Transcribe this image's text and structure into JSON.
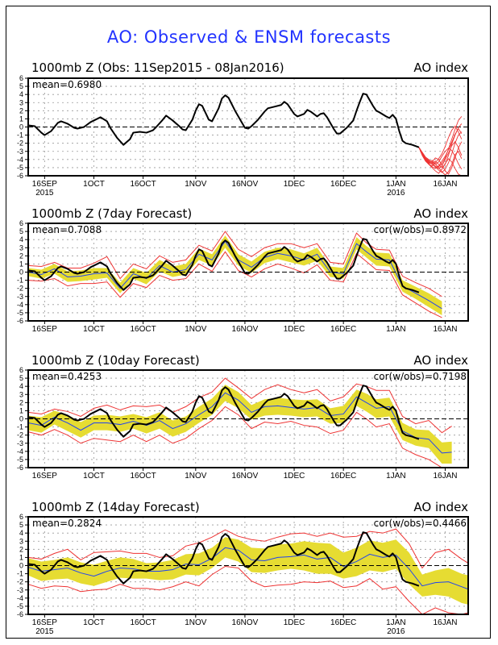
{
  "title": "AO: Observed & ENSM forecasts",
  "colors": {
    "title": "#2233ff",
    "observed": "#000000",
    "ensemble_mean": "#2244ee",
    "spread_band": "#e6dc32",
    "envelope": "#ee3333",
    "grid": "#999999"
  },
  "chart_data": [
    {
      "type": "line",
      "panel": "observed",
      "title": "1000mb Z (Obs: 11Sep2015 - 08Jan2016)",
      "right_label": "AO index",
      "stat_label": "mean=0.6980",
      "corr_label": "",
      "x_start": "2015-09-11",
      "xlim_days": [
        0,
        134
      ],
      "ylim": [
        -6,
        6
      ],
      "yticks": [
        6,
        5,
        4,
        3,
        2,
        1,
        0,
        -1,
        -2,
        -3,
        -4,
        -5,
        -6
      ],
      "xticks": [
        {
          "day": 5,
          "label": "16SEP",
          "sub": "2015"
        },
        {
          "day": 20,
          "label": "1OCT",
          "sub": ""
        },
        {
          "day": 35,
          "label": "16OCT",
          "sub": ""
        },
        {
          "day": 51,
          "label": "1NOV",
          "sub": ""
        },
        {
          "day": 66,
          "label": "16NOV",
          "sub": ""
        },
        {
          "day": 81,
          "label": "1DEC",
          "sub": ""
        },
        {
          "day": 96,
          "label": "16DEC",
          "sub": ""
        },
        {
          "day": 112,
          "label": "1JAN",
          "sub": "2016"
        },
        {
          "day": 127,
          "label": "16JAN",
          "sub": ""
        }
      ],
      "grid": true,
      "show_year_labels": true,
      "series": [
        {
          "name": "observed",
          "kind": "observed"
        },
        {
          "name": "ensemble members",
          "kind": "members",
          "start_day": 119,
          "members": [
            [
              -2.5,
              -3.3,
              -3.9,
              -4.3,
              -4.6,
              -4.8,
              -4.9,
              -4.5,
              -3.8,
              -2.7,
              -1.5,
              -0.3,
              0.8,
              1.3
            ],
            [
              -2.5,
              -3.4,
              -4.0,
              -4.4,
              -4.5,
              -4.2,
              -4.6,
              -5.0,
              -4.6,
              -3.5,
              -2.1,
              -1.0,
              -0.1,
              0.4
            ],
            [
              -2.5,
              -3.2,
              -3.8,
              -4.2,
              -4.6,
              -4.9,
              -5.3,
              -5.6,
              -5.2,
              -4.4,
              -3.3,
              -2.0,
              -1.0,
              -0.6
            ],
            [
              -2.5,
              -3.3,
              -4.1,
              -4.5,
              -4.3,
              -3.8,
              -4.0,
              -4.7,
              -5.4,
              -5.8,
              -5.0,
              -3.8,
              -2.6,
              -1.8
            ],
            [
              -2.5,
              -3.5,
              -4.2,
              -4.6,
              -4.8,
              -4.4,
              -3.9,
              -3.3,
              -2.4,
              -1.3,
              -0.4,
              0.1,
              -0.6,
              -1.5
            ],
            [
              -2.5,
              -3.1,
              -3.7,
              -4.0,
              -4.4,
              -4.9,
              -5.1,
              -4.8,
              -4.0,
              -3.2,
              -2.3,
              -1.8,
              -2.5,
              -3.5
            ],
            [
              -2.5,
              -3.4,
              -4.0,
              -4.3,
              -4.1,
              -4.5,
              -5.0,
              -5.5,
              -5.9,
              -5.5,
              -4.6,
              -3.4,
              -3.0,
              -3.9
            ],
            [
              -2.5,
              -3.2,
              -3.9,
              -4.5,
              -4.9,
              -5.1,
              -4.8,
              -4.2,
              -3.6,
              -2.8,
              -1.9,
              -0.9,
              -0.2,
              -0.8
            ],
            [
              -2.5,
              -3.3,
              -3.8,
              -4.1,
              -4.3,
              -4.6,
              -4.3,
              -3.6,
              -3.0,
              -2.6,
              -2.9,
              -3.6,
              -4.5,
              -5.2
            ],
            [
              -2.5,
              -3.4,
              -4.1,
              -4.6,
              -5.0,
              -5.4,
              -5.7,
              -5.2,
              -4.5,
              -3.9,
              -4.3,
              -5.1,
              -5.8,
              -6.0
            ]
          ]
        }
      ],
      "observed": {
        "days": [
          0,
          2,
          4,
          5,
          7,
          9,
          10,
          12,
          14,
          15,
          17,
          19,
          21,
          22,
          24,
          25,
          27,
          29,
          31,
          32,
          34,
          36,
          38,
          39,
          41,
          42,
          44,
          46,
          47,
          48,
          50,
          51,
          52,
          53,
          55,
          56,
          58,
          59,
          60,
          61,
          63,
          65,
          66,
          67,
          68,
          70,
          72,
          73,
          75,
          77,
          78,
          79,
          81,
          82,
          84,
          85,
          86,
          88,
          89,
          90,
          91,
          93,
          94,
          95,
          97,
          99,
          100,
          101,
          102,
          103,
          105,
          106,
          107,
          109,
          110,
          111,
          112,
          113,
          114,
          115,
          117,
          119
        ],
        "values": [
          0.2,
          0.1,
          -0.7,
          -1.0,
          -0.5,
          0.5,
          0.7,
          0.4,
          -0.1,
          -0.2,
          0.0,
          0.6,
          1.0,
          1.2,
          0.7,
          -0.1,
          -1.3,
          -2.2,
          -1.5,
          -0.7,
          -0.6,
          -0.7,
          -0.4,
          0.0,
          0.9,
          1.4,
          0.8,
          0.1,
          -0.3,
          -0.4,
          0.9,
          2.0,
          2.8,
          2.6,
          0.9,
          0.7,
          2.3,
          3.5,
          3.9,
          3.6,
          2.0,
          0.6,
          -0.1,
          -0.2,
          0.1,
          0.9,
          1.9,
          2.3,
          2.5,
          2.7,
          3.1,
          2.8,
          1.6,
          1.3,
          1.6,
          2.1,
          1.9,
          1.3,
          1.6,
          1.7,
          1.2,
          -0.2,
          -0.8,
          -0.8,
          -0.1,
          0.8,
          2.0,
          3.1,
          4.1,
          4.0,
          2.6,
          2.0,
          1.8,
          1.3,
          1.1,
          1.5,
          1.0,
          -0.5,
          -1.7,
          -2.0,
          -2.2,
          -2.5
        ]
      }
    },
    {
      "type": "area",
      "panel": "7day",
      "title": "1000mb Z (7day Forecast)",
      "right_label": "AO index",
      "stat_label": "mean=0.7088",
      "corr_label": "cor(w/obs)=0.8972",
      "xlim_days": [
        0,
        134
      ],
      "ylim": [
        -6,
        6
      ],
      "show_year_labels": false,
      "forecast": {
        "days": [
          0,
          4,
          8,
          12,
          16,
          20,
          24,
          28,
          32,
          36,
          40,
          44,
          48,
          52,
          56,
          60,
          64,
          68,
          72,
          76,
          80,
          84,
          88,
          92,
          96,
          100,
          103,
          106,
          110,
          114,
          118,
          122,
          126
        ],
        "mean": [
          0.0,
          -0.3,
          0.4,
          -0.6,
          -0.5,
          -0.2,
          -0.1,
          -2.0,
          -0.2,
          -0.8,
          0.8,
          0.0,
          0.3,
          2.2,
          1.5,
          3.8,
          1.5,
          0.6,
          1.8,
          2.3,
          2.0,
          1.5,
          2.2,
          0.0,
          -0.2,
          3.5,
          2.5,
          1.6,
          1.5,
          -1.7,
          -2.6,
          -3.5,
          -4.5
        ],
        "band_lo": [
          -0.5,
          -0.8,
          -0.2,
          -1.2,
          -1.1,
          -0.9,
          -0.7,
          -2.6,
          -0.8,
          -1.5,
          0.1,
          -0.6,
          -0.3,
          1.5,
          0.8,
          3.0,
          0.8,
          -0.1,
          1.1,
          1.6,
          1.2,
          0.8,
          1.4,
          -0.6,
          -0.8,
          2.8,
          1.8,
          0.8,
          0.7,
          -2.4,
          -3.3,
          -4.3,
          -5.3
        ],
        "band_hi": [
          0.5,
          0.3,
          1.0,
          0.1,
          0.2,
          0.5,
          0.5,
          -1.3,
          0.5,
          -0.1,
          1.5,
          0.7,
          1.0,
          2.9,
          2.2,
          4.5,
          2.2,
          1.3,
          2.5,
          3.0,
          2.8,
          2.3,
          3.0,
          0.7,
          0.5,
          4.3,
          3.2,
          2.4,
          2.3,
          -1.0,
          -1.8,
          -2.6,
          -3.6
        ],
        "env_lo": [
          -1.0,
          -1.1,
          -0.8,
          -1.7,
          -1.4,
          -1.4,
          -1.2,
          -3.1,
          -1.4,
          -1.9,
          -0.4,
          -1.0,
          -0.8,
          1.0,
          0.1,
          2.5,
          0.2,
          -0.6,
          0.4,
          1.0,
          0.5,
          -0.1,
          0.9,
          -1.0,
          -1.2,
          2.3,
          1.3,
          0.3,
          0.2,
          -2.8,
          -3.8,
          -4.8,
          -5.6
        ],
        "env_hi": [
          0.8,
          0.7,
          1.2,
          0.5,
          0.5,
          1.1,
          1.9,
          -0.8,
          1.0,
          0.4,
          2.0,
          1.2,
          1.5,
          3.3,
          2.6,
          5.0,
          2.8,
          1.9,
          3.0,
          3.5,
          3.5,
          3.0,
          3.5,
          1.2,
          1.0,
          4.8,
          3.6,
          2.8,
          2.7,
          -0.5,
          -1.3,
          -2.0,
          -3.0
        ]
      }
    },
    {
      "type": "area",
      "panel": "10day",
      "title": "1000mb Z (10day Forecast)",
      "right_label": "AO index",
      "stat_label": "mean=0.4253",
      "corr_label": "cor(w/obs)=0.7198",
      "xlim_days": [
        0,
        134
      ],
      "ylim": [
        -6,
        6
      ],
      "show_year_labels": false,
      "forecast": {
        "days": [
          0,
          4,
          8,
          12,
          16,
          20,
          24,
          28,
          32,
          36,
          40,
          44,
          48,
          52,
          56,
          60,
          64,
          68,
          72,
          76,
          80,
          84,
          88,
          92,
          96,
          100,
          103,
          106,
          110,
          114,
          118,
          122,
          126,
          129
        ],
        "mean": [
          -0.5,
          -0.8,
          0.2,
          -0.5,
          -1.4,
          -0.5,
          -0.5,
          -0.7,
          -0.3,
          -0.8,
          -0.2,
          -1.2,
          -0.6,
          0.5,
          1.5,
          3.2,
          2.3,
          0.8,
          1.5,
          1.6,
          1.4,
          1.2,
          1.4,
          0.4,
          0.6,
          2.7,
          2.0,
          1.3,
          1.5,
          -1.5,
          -2.3,
          -2.5,
          -4.2,
          -4.1
        ],
        "band_lo": [
          -1.4,
          -1.7,
          -0.7,
          -1.5,
          -2.3,
          -1.4,
          -1.4,
          -1.6,
          -1.2,
          -1.8,
          -1.2,
          -2.2,
          -1.6,
          -0.5,
          0.5,
          2.2,
          1.3,
          -0.1,
          0.4,
          0.5,
          0.4,
          0.2,
          0.3,
          -0.6,
          -0.5,
          1.6,
          0.9,
          0.1,
          0.3,
          -2.6,
          -3.3,
          -3.6,
          -5.5,
          -5.5
        ],
        "band_hi": [
          0.4,
          0.2,
          1.0,
          0.5,
          -0.4,
          0.4,
          0.5,
          0.3,
          0.6,
          0.2,
          0.8,
          -0.2,
          0.3,
          1.5,
          2.5,
          4.2,
          3.3,
          1.7,
          2.4,
          2.6,
          2.4,
          2.3,
          2.4,
          1.3,
          1.6,
          3.6,
          3.1,
          2.4,
          2.6,
          -0.5,
          -1.3,
          -1.4,
          -2.9,
          -2.8
        ],
        "env_lo": [
          -1.6,
          -2.0,
          -1.3,
          -2.0,
          -3.0,
          -2.4,
          -2.6,
          -2.8,
          -2.0,
          -2.8,
          -2.0,
          -3.0,
          -2.4,
          -1.2,
          -0.2,
          1.5,
          0.5,
          -1.2,
          -0.4,
          -0.6,
          -0.3,
          -0.8,
          -1.0,
          -1.8,
          -1.4,
          0.8,
          0.0,
          -1.0,
          -0.6,
          -3.6,
          -4.4,
          -5.0,
          -6.0,
          -6.0
        ],
        "env_hi": [
          0.8,
          0.6,
          1.2,
          0.9,
          0.3,
          1.3,
          1.7,
          1.1,
          1.6,
          1.5,
          1.7,
          0.8,
          1.5,
          2.6,
          3.3,
          5.0,
          3.8,
          2.5,
          3.6,
          4.2,
          3.6,
          3.2,
          3.6,
          2.2,
          2.7,
          4.3,
          4.0,
          3.5,
          3.5,
          0.3,
          -0.6,
          -0.2,
          -1.7,
          -0.9
        ]
      }
    },
    {
      "type": "area",
      "panel": "14day",
      "title": "1000mb Z (14day Forecast)",
      "right_label": "AO index",
      "stat_label": "mean=0.2824",
      "corr_label": "cor(w/obs)=0.4466",
      "xlim_days": [
        0,
        134
      ],
      "ylim": [
        -6,
        6
      ],
      "show_year_labels": true,
      "forecast": {
        "days": [
          0,
          4,
          8,
          12,
          16,
          20,
          24,
          28,
          32,
          36,
          40,
          44,
          48,
          52,
          56,
          60,
          64,
          68,
          72,
          76,
          80,
          84,
          88,
          92,
          96,
          100,
          104,
          108,
          112,
          116,
          120,
          124,
          128,
          132,
          134
        ],
        "mean": [
          -0.2,
          -0.7,
          -0.5,
          -0.3,
          -0.9,
          -1.3,
          -0.7,
          -0.3,
          -0.4,
          -0.7,
          -0.7,
          -0.5,
          0.2,
          0.1,
          0.9,
          2.2,
          1.9,
          0.7,
          0.6,
          1.0,
          1.1,
          1.3,
          0.8,
          1.0,
          -0.1,
          0.5,
          1.4,
          1.0,
          1.3,
          -0.4,
          -2.5,
          -2.1,
          -2.0,
          -2.6,
          -2.9
        ],
        "band_lo": [
          -1.2,
          -1.9,
          -1.7,
          -1.6,
          -2.2,
          -2.5,
          -2.0,
          -1.5,
          -1.6,
          -1.6,
          -1.8,
          -1.7,
          -1.1,
          -1.2,
          -0.3,
          1.0,
          0.5,
          -0.8,
          -0.9,
          -0.6,
          -0.4,
          -0.6,
          -1.0,
          -1.0,
          -1.6,
          -1.3,
          -0.6,
          -0.8,
          -0.4,
          -2.3,
          -3.8,
          -3.6,
          -3.8,
          -4.6,
          -4.8
        ],
        "band_hi": [
          0.9,
          0.5,
          0.7,
          1.0,
          0.4,
          0.1,
          0.6,
          1.0,
          0.8,
          0.3,
          0.4,
          0.7,
          1.4,
          1.5,
          2.2,
          3.5,
          3.2,
          2.2,
          2.1,
          2.6,
          2.7,
          3.0,
          2.8,
          2.7,
          1.6,
          2.2,
          3.1,
          2.8,
          3.2,
          1.6,
          -1.1,
          -0.6,
          -0.3,
          -1.0,
          -1.2
        ],
        "env_lo": [
          -2.3,
          -2.8,
          -2.5,
          -2.6,
          -3.2,
          -3.0,
          -2.9,
          -2.3,
          -2.8,
          -2.8,
          -3.0,
          -2.6,
          -2.0,
          -2.5,
          -1.1,
          -0.1,
          -0.3,
          -1.9,
          -2.6,
          -2.4,
          -2.3,
          -2.0,
          -2.1,
          -1.9,
          -2.7,
          -2.5,
          -1.6,
          -2.9,
          -2.6,
          -4.4,
          -6.0,
          -5.2,
          -5.8,
          -6.0,
          -5.8
        ],
        "env_hi": [
          1.0,
          0.8,
          1.5,
          2.0,
          0.7,
          1.6,
          1.7,
          1.8,
          1.5,
          1.5,
          1.0,
          1.2,
          2.4,
          2.8,
          3.5,
          4.4,
          3.6,
          3.2,
          3.0,
          3.5,
          3.9,
          4.0,
          3.6,
          4.0,
          3.5,
          3.6,
          4.2,
          4.0,
          4.5,
          2.7,
          -0.3,
          1.6,
          2.0,
          0.8,
          0.3
        ]
      }
    }
  ]
}
